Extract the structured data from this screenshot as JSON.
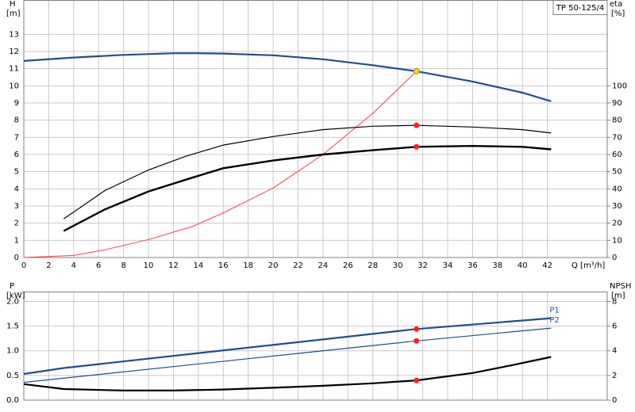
{
  "chart_data": [
    {
      "type": "line",
      "label": "TP 50-125/4",
      "ylabel": "H",
      "yunit": "[m]",
      "y2label": "eta",
      "y2unit": "[%]",
      "xlabel": "Q [m³/h]",
      "xlim": [
        0,
        46.8
      ],
      "xticks": [
        0,
        2,
        4,
        6,
        8,
        10,
        12,
        14,
        16,
        18,
        20,
        22,
        24,
        26,
        28,
        30,
        32,
        34,
        36,
        38,
        40,
        42
      ],
      "ylim": [
        0,
        15
      ],
      "yticks": [
        0,
        1,
        2,
        3,
        4,
        5,
        6,
        7,
        8,
        9,
        10,
        11,
        12,
        13
      ],
      "y2lim": [
        0,
        150
      ],
      "y2ticks": [
        0,
        10,
        20,
        30,
        40,
        50,
        60,
        70,
        80,
        90,
        100
      ],
      "grid": true,
      "series": [
        {
          "color": "#1f4e8c",
          "width": 2.2,
          "axis": "y",
          "x": [
            0,
            4,
            8,
            12,
            14,
            16,
            20,
            24,
            28,
            31.5,
            36,
            40,
            42.3
          ],
          "values": [
            11.45,
            11.65,
            11.8,
            11.9,
            11.9,
            11.88,
            11.78,
            11.55,
            11.2,
            10.85,
            10.25,
            9.6,
            9.1
          ]
        },
        {
          "color": "#ff3b3b",
          "width": 1,
          "axis": "y",
          "x": [
            0,
            4,
            6.5,
            10,
            13.5,
            16,
            20,
            24,
            28,
            31.5
          ],
          "values": [
            0,
            0.12,
            0.45,
            1.05,
            1.8,
            2.6,
            4.05,
            6,
            8.4,
            10.85
          ]
        },
        {
          "color": "#000000",
          "width": 1.2,
          "axis": "y2",
          "x": [
            3.2,
            6.5,
            10,
            13,
            16,
            20,
            24,
            28,
            31.5,
            36,
            40,
            42.3
          ],
          "values": [
            22.5,
            39,
            51,
            59,
            65.5,
            70.5,
            74.5,
            76.5,
            77,
            76,
            74.5,
            72.5
          ]
        },
        {
          "color": "#000000",
          "width": 2.4,
          "axis": "y2",
          "x": [
            3.2,
            6.5,
            10,
            13.5,
            16,
            20,
            24,
            28,
            31.5,
            36,
            40,
            42.3
          ],
          "values": [
            15.5,
            28,
            38.5,
            46.5,
            52,
            56.5,
            60,
            62.5,
            64.5,
            65,
            64.5,
            63
          ]
        }
      ],
      "points": [
        {
          "x": 31.5,
          "y": 10.85,
          "axis": "y",
          "color": "#ffd21f"
        },
        {
          "x": 31.5,
          "y": 77,
          "axis": "y2",
          "color": "#ff2020"
        },
        {
          "x": 31.5,
          "y": 64.5,
          "axis": "y2",
          "color": "#ff2020"
        }
      ]
    },
    {
      "type": "line",
      "ylabel": "P",
      "yunit": "[kW]",
      "y2label": "NPSH",
      "y2unit": "[m]",
      "xlim": [
        0,
        46.8
      ],
      "xticks": [
        0,
        2,
        4,
        6,
        8,
        10,
        12,
        14,
        16,
        18,
        20,
        22,
        24,
        26,
        28,
        30,
        32,
        34,
        36,
        38,
        40,
        42
      ],
      "ylim": [
        0,
        2.2
      ],
      "yticks": [
        {
          "value": 0,
          "label": "0.0"
        },
        0.5,
        {
          "value": 1,
          "label": "1.0"
        },
        1.5,
        {
          "value": 2,
          "label": "2.0"
        }
      ],
      "y2lim": [
        0,
        8.8
      ],
      "y2ticks": [
        0,
        2,
        4,
        6,
        8
      ],
      "grid": true,
      "series": [
        {
          "name": "P1",
          "color": "#1f4e8c",
          "width": 2.2,
          "axis": "y",
          "x": [
            0,
            3.2,
            31.5,
            42.3
          ],
          "values": [
            0.53,
            0.65,
            1.44,
            1.66
          ]
        },
        {
          "name": "P2",
          "color": "#1f4e8c",
          "width": 1.2,
          "axis": "y",
          "x": [
            0,
            31.5,
            42.3
          ],
          "values": [
            0.36,
            1.2,
            1.46
          ]
        },
        {
          "color": "#000000",
          "width": 2.2,
          "axis": "y2",
          "x": [
            0,
            3.2,
            8,
            12,
            16,
            20,
            24,
            28,
            31.5,
            36,
            39,
            42.3
          ],
          "values": [
            1.3,
            0.9,
            0.78,
            0.78,
            0.86,
            1.0,
            1.16,
            1.36,
            1.6,
            2.2,
            2.8,
            3.5
          ]
        }
      ],
      "points": [
        {
          "x": 31.5,
          "y": 1.44,
          "axis": "y",
          "color": "#ff2020"
        },
        {
          "x": 31.5,
          "y": 1.2,
          "axis": "y",
          "color": "#ff2020"
        },
        {
          "x": 31.5,
          "y": 1.6,
          "axis": "y2",
          "color": "#ff2020"
        }
      ]
    }
  ]
}
